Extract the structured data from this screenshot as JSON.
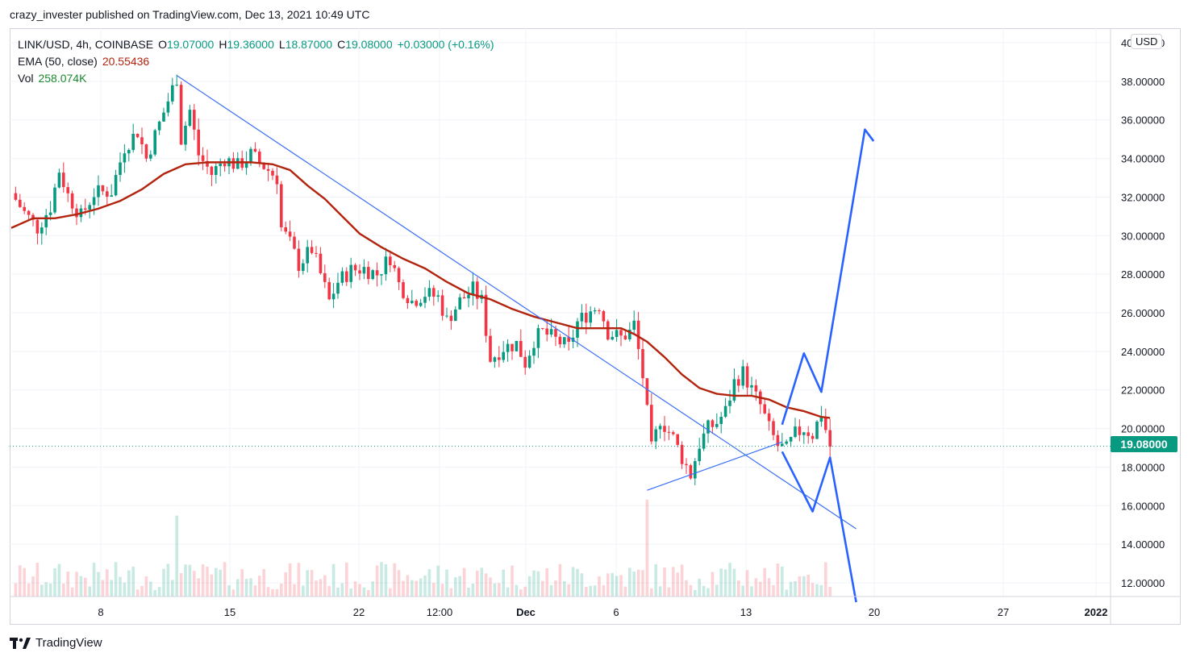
{
  "header": {
    "publisher_line": "crazy_invester published on TradingView.com, Dec 13, 2021 10:49 UTC"
  },
  "legend": {
    "symbol": "LINK/USD, 4h, COINBASE",
    "o_label": "O",
    "o_value": "19.07000",
    "h_label": "H",
    "h_value": "19.36000",
    "l_label": "L",
    "l_value": "18.87000",
    "c_label": "C",
    "c_value": "19.08000",
    "change": "+0.03000 (+0.16%)",
    "ema_label": "EMA (50, close)",
    "ema_value": "20.55436",
    "vol_label": "Vol",
    "vol_value": "258.074K"
  },
  "currency": "USD",
  "last_price_label": "19.08000",
  "brand": {
    "name": "TradingView"
  },
  "colors": {
    "up": "#089981",
    "down": "#f23645",
    "ema": "#b2240e",
    "trend": "#3a6ff5",
    "projection": "#2962ff",
    "grid": "#f0f3fa"
  },
  "chart_data": {
    "type": "candlestick",
    "symbol": "LINK/USD",
    "interval": "4h",
    "ylim": [
      11,
      40
    ],
    "y_ticks": [
      "12.00000",
      "14.00000",
      "16.00000",
      "18.00000",
      "20.00000",
      "22.00000",
      "24.00000",
      "26.00000",
      "28.00000",
      "30.00000",
      "32.00000",
      "34.00000",
      "36.00000",
      "38.00000",
      "40.00000"
    ],
    "x_ticks": [
      "8",
      "15",
      "22",
      "12:00",
      "Dec",
      "6",
      "13",
      "20",
      "27",
      "2022"
    ],
    "x_tick_bold": [
      "Dec",
      "2022"
    ],
    "last_price": 19.08,
    "price_path": [
      [
        0,
        32.2
      ],
      [
        3,
        31.2
      ],
      [
        6,
        30.4
      ],
      [
        9,
        31.5
      ],
      [
        11,
        33.4
      ],
      [
        13,
        32.1
      ],
      [
        16,
        31.0
      ],
      [
        19,
        32.2
      ],
      [
        23,
        32.3
      ],
      [
        26,
        34.6
      ],
      [
        29,
        35.4
      ],
      [
        31,
        34.0
      ],
      [
        33,
        35.2
      ],
      [
        36,
        37.0
      ],
      [
        38,
        38.2
      ],
      [
        39,
        35.0
      ],
      [
        41,
        36.5
      ],
      [
        43,
        34.2
      ],
      [
        46,
        33.2
      ],
      [
        49,
        34.0
      ],
      [
        52,
        33.6
      ],
      [
        55,
        34.2
      ],
      [
        58,
        33.6
      ],
      [
        61,
        33.0
      ],
      [
        62,
        30.4
      ],
      [
        64,
        29.6
      ],
      [
        66,
        28.5
      ],
      [
        69,
        29.3
      ],
      [
        71,
        28.0
      ],
      [
        73,
        26.6
      ],
      [
        75,
        27.6
      ],
      [
        78,
        28.2
      ],
      [
        81,
        28.3
      ],
      [
        84,
        28.0
      ],
      [
        87,
        28.9
      ],
      [
        89,
        27.5
      ],
      [
        92,
        26.6
      ],
      [
        95,
        27.0
      ],
      [
        98,
        26.8
      ],
      [
        100,
        25.6
      ],
      [
        103,
        26.6
      ],
      [
        106,
        27.2
      ],
      [
        108,
        26.6
      ],
      [
        110,
        23.6
      ],
      [
        113,
        24.2
      ],
      [
        116,
        24.4
      ],
      [
        118,
        23.4
      ],
      [
        120,
        24.6
      ],
      [
        122,
        25.0
      ],
      [
        125,
        24.6
      ],
      [
        128,
        24.2
      ],
      [
        130,
        25.5
      ],
      [
        133,
        26.1
      ],
      [
        135,
        26.4
      ],
      [
        137,
        25.0
      ],
      [
        140,
        24.7
      ],
      [
        142,
        25.0
      ],
      [
        143,
        25.4
      ],
      [
        145,
        22.7
      ],
      [
        147,
        18.9
      ],
      [
        149,
        20.5
      ],
      [
        152,
        19.5
      ],
      [
        154,
        18.5
      ],
      [
        156,
        17.6
      ],
      [
        158,
        19.2
      ],
      [
        160,
        20.0
      ],
      [
        162,
        20.3
      ],
      [
        164,
        20.9
      ],
      [
        166,
        22.4
      ],
      [
        168,
        22.9
      ],
      [
        170,
        22.0
      ],
      [
        172,
        21.2
      ],
      [
        174,
        20.0
      ],
      [
        176,
        19.1
      ],
      [
        178,
        18.9
      ],
      [
        180,
        19.7
      ],
      [
        182,
        20.0
      ],
      [
        184,
        19.7
      ],
      [
        186,
        20.8
      ],
      [
        188,
        19.08
      ]
    ],
    "ema50_path": [
      [
        0,
        30.4
      ],
      [
        5,
        30.9
      ],
      [
        10,
        30.9
      ],
      [
        15,
        31.1
      ],
      [
        20,
        31.4
      ],
      [
        25,
        31.8
      ],
      [
        30,
        32.4
      ],
      [
        35,
        33.2
      ],
      [
        40,
        33.7
      ],
      [
        45,
        33.8
      ],
      [
        50,
        33.8
      ],
      [
        55,
        33.8
      ],
      [
        60,
        33.7
      ],
      [
        64,
        33.4
      ],
      [
        68,
        32.6
      ],
      [
        72,
        31.9
      ],
      [
        76,
        31.0
      ],
      [
        80,
        30.1
      ],
      [
        85,
        29.4
      ],
      [
        90,
        28.8
      ],
      [
        95,
        28.3
      ],
      [
        100,
        27.6
      ],
      [
        105,
        27.0
      ],
      [
        110,
        26.7
      ],
      [
        115,
        26.2
      ],
      [
        120,
        25.8
      ],
      [
        125,
        25.5
      ],
      [
        130,
        25.2
      ],
      [
        135,
        25.2
      ],
      [
        140,
        25.2
      ],
      [
        143,
        24.9
      ],
      [
        146,
        24.5
      ],
      [
        150,
        23.7
      ],
      [
        154,
        22.8
      ],
      [
        158,
        22.1
      ],
      [
        162,
        21.8
      ],
      [
        166,
        21.7
      ],
      [
        170,
        21.7
      ],
      [
        174,
        21.5
      ],
      [
        178,
        21.1
      ],
      [
        182,
        20.9
      ],
      [
        186,
        20.6
      ],
      [
        188,
        20.55
      ]
    ],
    "trendline_upper": [
      [
        38,
        38.3
      ],
      [
        194,
        14.8
      ]
    ],
    "trendline_lower": [
      [
        146,
        16.8
      ],
      [
        177,
        19.3
      ]
    ],
    "projection_up": [
      [
        177,
        20.2
      ],
      [
        182,
        23.9
      ],
      [
        186,
        21.9
      ],
      [
        196,
        35.5
      ],
      [
        198,
        34.9
      ]
    ],
    "projection_down": [
      [
        177,
        18.8
      ],
      [
        184,
        15.7
      ],
      [
        188,
        18.5
      ],
      [
        194,
        11
      ]
    ]
  }
}
